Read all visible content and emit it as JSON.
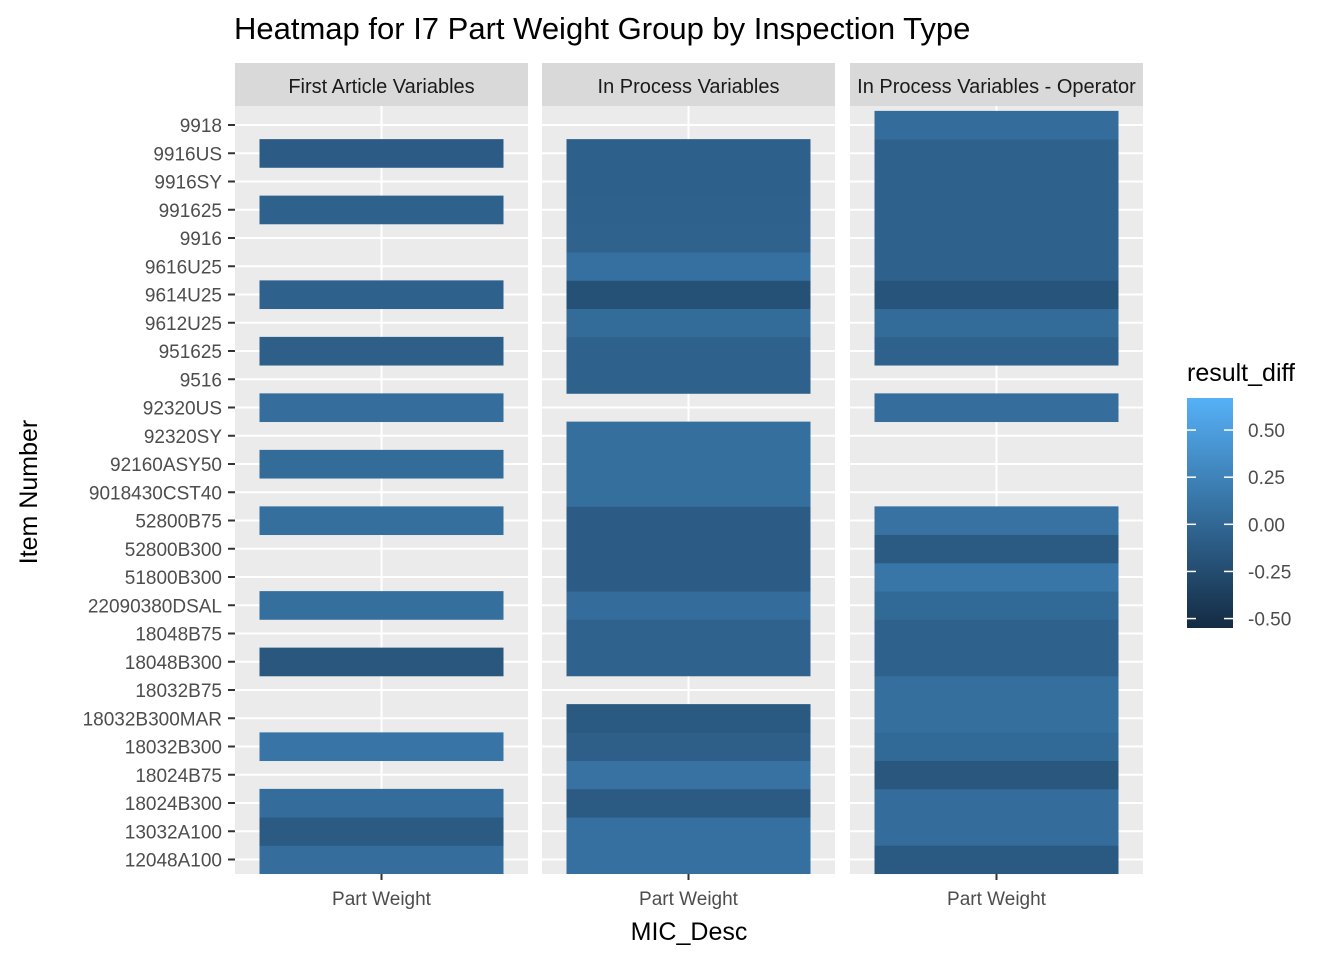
{
  "chart_data": {
    "type": "heatmap",
    "title": "Heatmap for I7 Part Weight Group by Inspection Type",
    "xlabel": "MIC_Desc",
    "ylabel": "Item Number",
    "x_categories": [
      "Part Weight"
    ],
    "y_categories": [
      "12048A100",
      "13032A100",
      "18024B300",
      "18024B75",
      "18032B300",
      "18032B300MAR",
      "18032B75",
      "18048B300",
      "18048B75",
      "22090380DSAL",
      "51800B300",
      "52800B300",
      "52800B75",
      "9018430CST40",
      "92160ASY50",
      "92320SY",
      "92320US",
      "9516",
      "951625",
      "9612U25",
      "9614U25",
      "9616U25",
      "9916",
      "991625",
      "9916SY",
      "9916US",
      "9918"
    ],
    "facets": [
      {
        "label": "First Article Variables",
        "cells": [
          {
            "y": "12048A100",
            "value": 0.06
          },
          {
            "y": "13032A100",
            "value": -0.12
          },
          {
            "y": "18024B300",
            "value": 0.05
          },
          {
            "y": "18032B300",
            "value": 0.12
          },
          {
            "y": "18048B300",
            "value": -0.15
          },
          {
            "y": "22090380DSAL",
            "value": 0.07
          },
          {
            "y": "52800B75",
            "value": 0.07
          },
          {
            "y": "92160ASY50",
            "value": 0.03
          },
          {
            "y": "92320US",
            "value": 0.06
          },
          {
            "y": "951625",
            "value": -0.08
          },
          {
            "y": "9614U25",
            "value": -0.06
          },
          {
            "y": "991625",
            "value": -0.05
          },
          {
            "y": "9916US",
            "value": -0.1
          }
        ]
      },
      {
        "label": "In Process Variables",
        "cells": [
          {
            "y": "12048A100",
            "value": 0.08
          },
          {
            "y": "13032A100",
            "value": 0.08
          },
          {
            "y": "18024B300",
            "value": -0.12
          },
          {
            "y": "18024B75",
            "value": 0.1
          },
          {
            "y": "18032B300",
            "value": -0.08
          },
          {
            "y": "18032B300MAR",
            "value": -0.13
          },
          {
            "y": "18048B300",
            "value": -0.04
          },
          {
            "y": "18048B75",
            "value": -0.04
          },
          {
            "y": "22090380DSAL",
            "value": 0.05
          },
          {
            "y": "51800B300",
            "value": -0.1
          },
          {
            "y": "52800B300",
            "value": -0.1
          },
          {
            "y": "52800B75",
            "value": -0.1
          },
          {
            "y": "9018430CST40",
            "value": 0.07
          },
          {
            "y": "92160ASY50",
            "value": 0.07
          },
          {
            "y": "92320SY",
            "value": 0.07
          },
          {
            "y": "9516",
            "value": -0.06
          },
          {
            "y": "951625",
            "value": -0.06
          },
          {
            "y": "9612U25",
            "value": 0.03
          },
          {
            "y": "9614U25",
            "value": -0.2
          },
          {
            "y": "9616U25",
            "value": 0.08
          },
          {
            "y": "9916",
            "value": -0.04
          },
          {
            "y": "991625",
            "value": -0.06
          },
          {
            "y": "9916SY",
            "value": -0.07
          },
          {
            "y": "9916US",
            "value": -0.07
          }
        ]
      },
      {
        "label": "In Process Variables - Operator",
        "cells": [
          {
            "y": "12048A100",
            "value": -0.13
          },
          {
            "y": "13032A100",
            "value": 0.05
          },
          {
            "y": "18024B300",
            "value": 0.05
          },
          {
            "y": "18024B75",
            "value": -0.15
          },
          {
            "y": "18032B300",
            "value": 0.02
          },
          {
            "y": "18032B300MAR",
            "value": 0.07
          },
          {
            "y": "18032B75",
            "value": 0.07
          },
          {
            "y": "18048B300",
            "value": -0.06
          },
          {
            "y": "18048B75",
            "value": -0.06
          },
          {
            "y": "22090380DSAL",
            "value": 0.02
          },
          {
            "y": "51800B300",
            "value": 0.13
          },
          {
            "y": "52800B300",
            "value": -0.12
          },
          {
            "y": "52800B75",
            "value": 0.1
          },
          {
            "y": "92320US",
            "value": 0.06
          },
          {
            "y": "951625",
            "value": -0.06
          },
          {
            "y": "9612U25",
            "value": 0.03
          },
          {
            "y": "9614U25",
            "value": -0.18
          },
          {
            "y": "9616U25",
            "value": -0.06
          },
          {
            "y": "9916",
            "value": -0.06
          },
          {
            "y": "991625",
            "value": -0.06
          },
          {
            "y": "9916SY",
            "value": -0.06
          },
          {
            "y": "9916US",
            "value": -0.06
          },
          {
            "y": "9918",
            "value": 0.05
          }
        ]
      }
    ],
    "legend": {
      "title": "result_diff",
      "placement": "right",
      "ticks": [
        0.5,
        0.25,
        0,
        -0.25,
        -0.5
      ],
      "tick_labels": [
        "0.50",
        "0.25",
        "0.00",
        "-0.25",
        "-0.50"
      ],
      "range": [
        -0.55,
        0.67
      ],
      "low_color": "#132B43",
      "high_color": "#56B1F7"
    },
    "panel_background": "#EBEBEB",
    "strip_background": "#D9D9D9",
    "grid": true
  }
}
